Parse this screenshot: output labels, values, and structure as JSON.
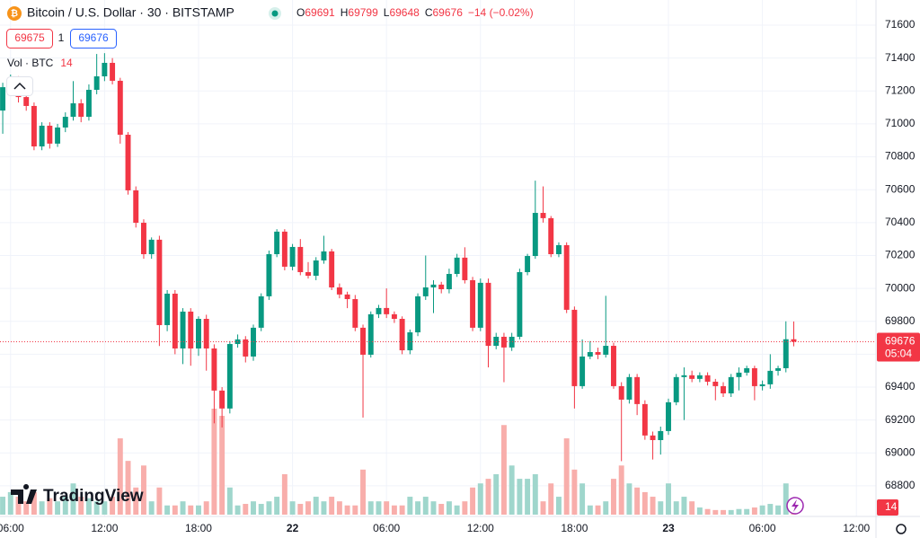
{
  "chart_data": {
    "type": "candlestick",
    "title": "Bitcoin / U.S. Dollar · 30 · BITSTAMP",
    "ohlc_labels": [
      "O",
      "H",
      "L",
      "C"
    ],
    "change_label": "−14 (−0.02%)",
    "bid": 69675,
    "spread": 1,
    "ask": 69676,
    "volume_label": "Vol · BTC",
    "countdown": "05:04",
    "brand": "TradingView",
    "up_color": "#089981",
    "down_color": "#f23645",
    "up_volume_color": "#9fd6cc",
    "down_volume_color": "#f8aeab",
    "grid": true,
    "ylim": [
      68614,
      71753
    ],
    "yticks": [
      68800,
      69000,
      69200,
      69400,
      69600,
      69800,
      70000,
      70200,
      70400,
      70600,
      70800,
      71000,
      71200,
      71400,
      71600
    ],
    "xlim": [
      -0.35,
      111.5
    ],
    "xticks": [
      {
        "value": 1,
        "label": "06:00"
      },
      {
        "value": 13,
        "label": "12:00"
      },
      {
        "value": 25,
        "label": "18:00"
      },
      {
        "value": 37,
        "label": "22"
      },
      {
        "value": 49,
        "label": "06:00"
      },
      {
        "value": 61,
        "label": "12:00"
      },
      {
        "value": 73,
        "label": "18:00"
      },
      {
        "value": 85,
        "label": "23"
      },
      {
        "value": 97,
        "label": "06:00"
      },
      {
        "value": 109,
        "label": "12:00"
      }
    ],
    "open": [
      71081,
      71223,
      71262,
      71163,
      71109,
      70863,
      70989,
      70880,
      70978,
      71043,
      71125,
      71043,
      71207,
      71289,
      71371,
      71262,
      70934,
      70596,
      70399,
      70208,
      70296,
      69777,
      69968,
      69635,
      69859,
      69635,
      69815,
      69635,
      69379,
      69270,
      69662,
      69690,
      69586,
      69761,
      69952,
      70208,
      70345,
      70132,
      70252,
      70099,
      70077,
      70170,
      70225,
      70006,
      69963,
      69935,
      69761,
      69597,
      69843,
      69881,
      69843,
      69815,
      69624,
      69733,
      69952,
      70006,
      70023,
      69995,
      70088,
      70187,
      70050,
      69761,
      70034,
      69651,
      69706,
      69641,
      69706,
      70099,
      70197,
      70459,
      70427,
      70208,
      70263,
      69870,
      69406,
      69586,
      69613,
      69597,
      69651,
      69406,
      69324,
      69461,
      69297,
      69106,
      69078,
      69133,
      69308,
      69461,
      69472,
      69450,
      69472,
      69433,
      69406,
      69362,
      69461,
      69488,
      69515,
      69406,
      69417,
      69499,
      69515,
      69691
    ],
    "high": [
      71250,
      71300,
      71290,
      71190,
      71130,
      71010,
      71010,
      71000,
      71070,
      71260,
      71150,
      71240,
      71425,
      71430,
      71400,
      71280,
      70950,
      70620,
      70420,
      70310,
      70320,
      69990,
      69990,
      69880,
      69880,
      69830,
      69840,
      69660,
      69400,
      69680,
      69720,
      69710,
      69780,
      69970,
      70230,
      70360,
      70360,
      70270,
      70300,
      70160,
      70190,
      70320,
      70240,
      70030,
      69980,
      69960,
      69780,
      69860,
      69900,
      70000,
      69860,
      69830,
      69750,
      69970,
      70200,
      70050,
      70040,
      70120,
      70210,
      70250,
      70070,
      70060,
      70060,
      69730,
      69730,
      69730,
      70120,
      70210,
      70655,
      70620,
      70440,
      70280,
      70280,
      69890,
      69690,
      69680,
      69640,
      69955,
      69670,
      69430,
      69480,
      69480,
      69320,
      69130,
      69160,
      69330,
      69480,
      69520,
      69500,
      69490,
      69490,
      69450,
      69430,
      69480,
      69520,
      69530,
      69530,
      69440,
      69600,
      69530,
      69800,
      69799
    ],
    "low": [
      70940,
      71190,
      71130,
      71080,
      70840,
      70840,
      70850,
      70860,
      70950,
      71020,
      71010,
      71020,
      71180,
      71260,
      71240,
      70880,
      70570,
      70370,
      70180,
      70180,
      69650,
      69740,
      69600,
      69540,
      69530,
      69590,
      69500,
      69180,
      69155,
      69240,
      69640,
      69550,
      69560,
      69740,
      69930,
      70190,
      70110,
      70110,
      70080,
      70060,
      70050,
      70150,
      69990,
      69940,
      69880,
      69740,
      69215,
      69580,
      69820,
      69820,
      69790,
      69600,
      69600,
      69710,
      69930,
      69850,
      69970,
      69970,
      70070,
      70030,
      69740,
      69740,
      69520,
      69630,
      69430,
      69620,
      69690,
      70080,
      70180,
      70400,
      70190,
      70190,
      69850,
      69270,
      69390,
      69570,
      69570,
      69580,
      69390,
      68950,
      69300,
      69230,
      69080,
      68960,
      68990,
      69110,
      69290,
      69200,
      69430,
      69430,
      69410,
      69320,
      69340,
      69340,
      69380,
      69470,
      69320,
      69380,
      69390,
      69470,
      69490,
      69648
    ],
    "close": [
      71223,
      71262,
      71163,
      71109,
      70863,
      70989,
      70880,
      70978,
      71043,
      71125,
      71043,
      71207,
      71289,
      71371,
      71262,
      70934,
      70596,
      70399,
      70208,
      70296,
      69777,
      69968,
      69635,
      69859,
      69635,
      69815,
      69635,
      69379,
      69270,
      69662,
      69690,
      69586,
      69761,
      69952,
      70208,
      70345,
      70132,
      70252,
      70099,
      70077,
      70170,
      70225,
      70006,
      69963,
      69935,
      69761,
      69597,
      69843,
      69881,
      69843,
      69815,
      69624,
      69733,
      69952,
      70006,
      70023,
      69995,
      70088,
      70187,
      70050,
      69761,
      70034,
      69651,
      69706,
      69641,
      69706,
      70099,
      70197,
      70459,
      70427,
      70208,
      70263,
      69870,
      69406,
      69586,
      69613,
      69597,
      69651,
      69406,
      69324,
      69461,
      69297,
      69106,
      69078,
      69133,
      69308,
      69461,
      69472,
      69450,
      69472,
      69433,
      69406,
      69362,
      69461,
      69488,
      69515,
      69406,
      69417,
      69499,
      69515,
      69691,
      69676
    ],
    "volume": [
      35,
      44,
      35,
      26,
      44,
      26,
      32,
      26,
      35,
      61,
      35,
      32,
      26,
      26,
      35,
      149,
      105,
      53,
      96,
      26,
      53,
      18,
      18,
      26,
      18,
      18,
      26,
      207,
      193,
      53,
      18,
      21,
      26,
      21,
      26,
      35,
      79,
      26,
      21,
      26,
      35,
      26,
      35,
      26,
      18,
      18,
      88,
      26,
      26,
      26,
      18,
      18,
      35,
      26,
      35,
      26,
      21,
      26,
      18,
      26,
      53,
      61,
      70,
      79,
      175,
      96,
      70,
      70,
      79,
      26,
      61,
      35,
      149,
      88,
      61,
      18,
      18,
      26,
      70,
      96,
      61,
      53,
      44,
      35,
      26,
      61,
      26,
      35,
      26,
      14,
      11,
      9,
      9,
      9,
      11,
      11,
      14,
      18,
      21,
      18,
      61,
      14
    ]
  }
}
